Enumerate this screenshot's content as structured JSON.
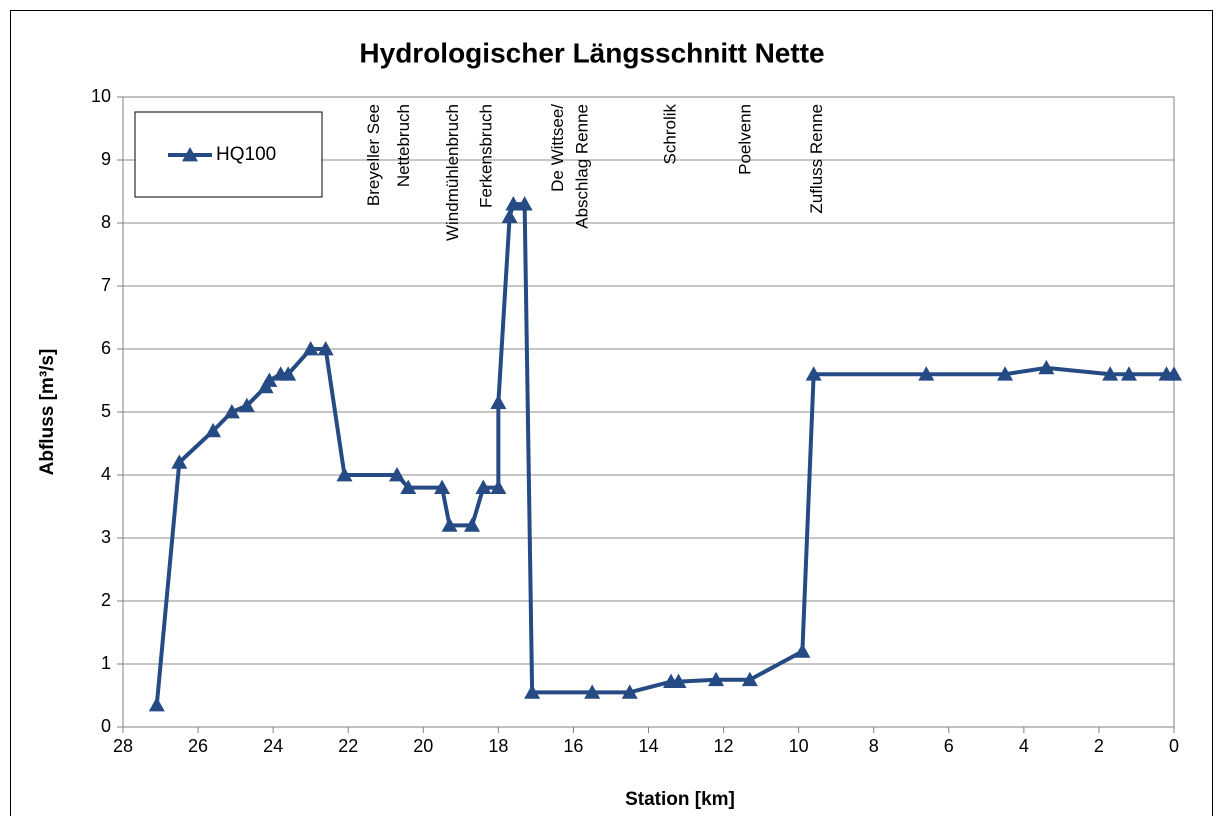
{
  "chart_data": {
    "type": "line",
    "title": "Hydrologischer  Längsschnitt Nette",
    "x_label": "Station [km]",
    "y_label": "Abfluss  [m³/s]",
    "xlim": [
      28,
      0
    ],
    "xticks": [
      28,
      26,
      24,
      22,
      20,
      18,
      16,
      14,
      12,
      10,
      8,
      6,
      4,
      2,
      0
    ],
    "ylim": [
      0,
      10
    ],
    "yticks": [
      0,
      1,
      2,
      3,
      4,
      5,
      6,
      7,
      8,
      9,
      10
    ],
    "grid": true,
    "legend": "top-left",
    "series": [
      {
        "name": "HQ100",
        "color": "#254a84",
        "x": [
          27.1,
          26.5,
          25.6,
          25.1,
          24.7,
          24.2,
          24.1,
          23.8,
          23.6,
          23.0,
          22.6,
          22.1,
          20.7,
          20.4,
          19.5,
          19.3,
          18.7,
          18.4,
          18.0,
          18.0,
          17.7,
          17.6,
          17.3,
          17.1,
          15.5,
          14.5,
          13.4,
          13.2,
          12.2,
          11.3,
          9.9,
          9.6,
          6.6,
          4.5,
          3.4,
          1.7,
          1.2,
          0.2,
          0
        ],
        "values": [
          0.35,
          4.2,
          4.7,
          5.0,
          5.1,
          5.4,
          5.5,
          5.6,
          5.6,
          6.0,
          6.0,
          4.0,
          4.0,
          3.8,
          3.8,
          3.2,
          3.2,
          3.8,
          3.8,
          5.15,
          8.1,
          8.3,
          8.3,
          0.55,
          0.55,
          0.55,
          0.72,
          0.72,
          0.75,
          0.75,
          1.2,
          5.6,
          5.6,
          5.6,
          5.7,
          5.6,
          5.6,
          5.6,
          5.6
        ]
      }
    ],
    "annotations": [
      {
        "text": "Breyeller See",
        "x": 21.3
      },
      {
        "text": "Nettebruch",
        "x": 20.5
      },
      {
        "text": "Windmühlenbruch",
        "x": 19.2
      },
      {
        "text": "Ferkensbruch",
        "x": 18.3
      },
      {
        "text": "De Wittsee/",
        "x": 16.4
      },
      {
        "text": "Abschlag Renne",
        "x": 15.75
      },
      {
        "text": "Schrolik",
        "x": 13.4
      },
      {
        "text": "Poelvenn",
        "x": 11.4
      },
      {
        "text": "Zufluss Renne",
        "x": 9.5
      }
    ]
  }
}
